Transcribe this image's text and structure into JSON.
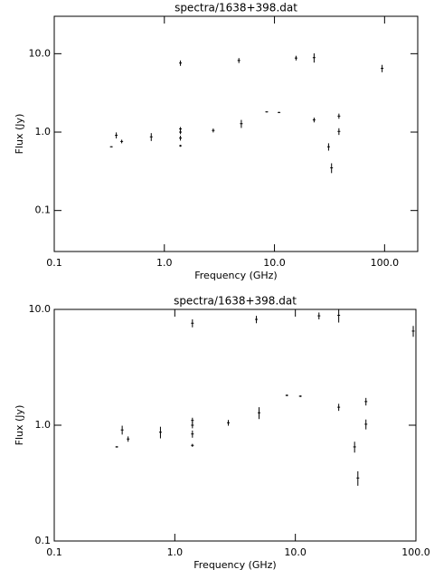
{
  "chart_data": [
    {
      "type": "scatter",
      "title": "spectra/1638+398.dat",
      "x_label": "Frequency (GHz)",
      "y_label": "Flux (Jy)",
      "log_x": true,
      "log_y": true,
      "color": "#000000",
      "x": [
        0.33,
        0.366,
        0.41,
        0.76,
        1.4,
        1.4,
        1.4,
        1.4,
        1.4,
        2.78,
        4.75,
        5.0,
        8.5,
        11.0,
        15.7,
        22.9,
        22.9,
        31,
        33,
        38.5,
        38.5,
        95
      ],
      "values": [
        0.65,
        0.91,
        0.76,
        0.87,
        7.6,
        1.1,
        1.0,
        0.84,
        0.67,
        1.05,
        8.2,
        1.28,
        1.81,
        1.78,
        8.8,
        8.9,
        1.43,
        0.65,
        0.35,
        1.02,
        1.6,
        6.5
      ],
      "errors": [
        0.01,
        0.08,
        0.04,
        0.1,
        0.6,
        0.06,
        0.06,
        0.06,
        0.02,
        0.06,
        0.6,
        0.15,
        0.03,
        0.03,
        0.6,
        1.2,
        0.1,
        0.07,
        0.05,
        0.1,
        0.12,
        0.7
      ],
      "xlim": [
        0.1,
        200
      ],
      "ylim": [
        0.03,
        30
      ],
      "xticks": [
        0.1,
        {
          "value": 1,
          "label": "1.0"
        },
        {
          "value": 10,
          "label": "10.0"
        },
        {
          "value": 100,
          "label": "100.0"
        }
      ],
      "yticks": [
        0.1,
        {
          "value": 1,
          "label": "1.0"
        },
        {
          "value": 10,
          "label": "10.0"
        }
      ]
    },
    {
      "type": "scatter",
      "title": "spectra/1638+398.dat",
      "x_label": "Frequency (GHz)",
      "y_label": "Flux (Jy)",
      "log_x": true,
      "log_y": true,
      "color": "#000000",
      "x": [
        0.33,
        0.366,
        0.41,
        0.76,
        1.4,
        1.4,
        1.4,
        1.4,
        1.4,
        2.78,
        4.75,
        5.0,
        8.5,
        11.0,
        15.7,
        22.9,
        22.9,
        31,
        33,
        38.5,
        38.5,
        95
      ],
      "values": [
        0.65,
        0.91,
        0.76,
        0.87,
        7.6,
        1.1,
        1.0,
        0.84,
        0.67,
        1.05,
        8.2,
        1.28,
        1.81,
        1.78,
        8.8,
        8.9,
        1.43,
        0.65,
        0.35,
        1.02,
        1.6,
        6.5
      ],
      "errors": [
        0.01,
        0.08,
        0.04,
        0.1,
        0.6,
        0.06,
        0.06,
        0.06,
        0.02,
        0.06,
        0.6,
        0.15,
        0.03,
        0.03,
        0.6,
        1.2,
        0.1,
        0.07,
        0.05,
        0.1,
        0.12,
        0.7
      ],
      "xlim": [
        0.1,
        100
      ],
      "ylim": [
        0.1,
        10
      ],
      "xticks": [
        0.1,
        {
          "value": 1,
          "label": "1.0"
        },
        {
          "value": 10,
          "label": "10.0"
        },
        {
          "value": 100,
          "label": "100.0"
        }
      ],
      "yticks": [
        0.1,
        {
          "value": 1,
          "label": "1.0"
        },
        {
          "value": 10,
          "label": "10.0"
        }
      ]
    }
  ]
}
